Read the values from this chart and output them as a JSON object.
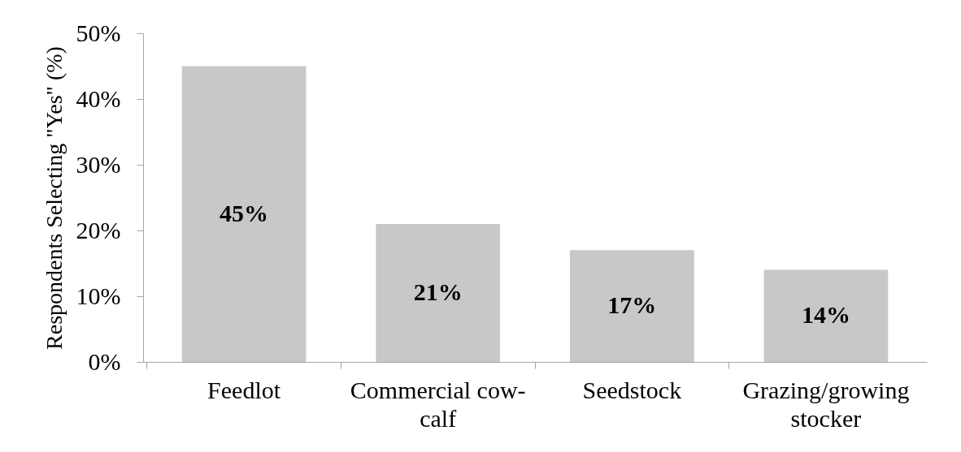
{
  "chart_data": {
    "type": "bar",
    "ylabel": "Respondents Selecting \"Yes\" (%)",
    "categories": [
      "Feedlot",
      "Commercial cow-calf",
      "Seedstock",
      "Grazing/growing stocker"
    ],
    "values": [
      45,
      21,
      17,
      14
    ],
    "color": "#c8c8c8",
    "value_labels": [
      "45%",
      "21%",
      "17%",
      "14%"
    ],
    "ylim": [
      0,
      50
    ],
    "yticks": [
      {
        "value": 0,
        "label": "0%"
      },
      {
        "value": 10,
        "label": "10%"
      },
      {
        "value": 20,
        "label": "20%"
      },
      {
        "value": 30,
        "label": "30%"
      },
      {
        "value": 40,
        "label": "40%"
      },
      {
        "value": 50,
        "label": "50%"
      }
    ],
    "grid": false
  }
}
